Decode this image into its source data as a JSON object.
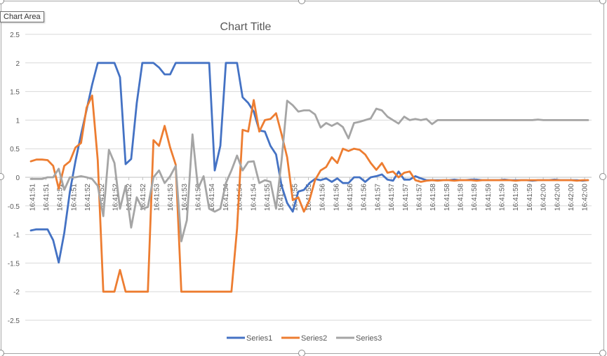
{
  "tooltip": "Chart Area",
  "chart_data": {
    "type": "line",
    "title": "Chart Title",
    "xlabel": "",
    "ylabel": "",
    "ylim": [
      -2.5,
      2.5
    ],
    "yticks": [
      2.5,
      2,
      1.5,
      1,
      0.5,
      0,
      -0.5,
      -1,
      -1.5,
      -2,
      -2.5
    ],
    "grid": true,
    "legend_position": "bottom",
    "x_tick_labels": [
      "16:41:51",
      "16:41:51",
      "16:41:51",
      "16:41:51",
      "16:41:52",
      "16:41:52",
      "16:41:52",
      "16:41:52",
      "16:41:52",
      "16:41:53",
      "16:41:53",
      "16:41:53",
      "16:41:53",
      "16:41:54",
      "16:41:54",
      "16:41:54",
      "16:41:54",
      "16:41:55",
      "16:41:55",
      "16:41:55",
      "16:41:55",
      "16:41:56",
      "16:41:56",
      "16:41:56",
      "16:41:56",
      "16:41:57",
      "16:41:57",
      "16:41:57",
      "16:41:57",
      "16:41:58",
      "16:41:58",
      "16:41:58",
      "16:41:58",
      "16:41:59",
      "16:41:59",
      "16:41:59",
      "16:41:59",
      "16:42:00",
      "16:42:00",
      "16:42:00",
      "16:42:00"
    ],
    "series": [
      {
        "name": "Series1",
        "color": "#4472C4",
        "values": [
          -0.93,
          -0.91,
          -0.91,
          -0.91,
          -1.1,
          -1.49,
          -0.97,
          -0.25,
          0.28,
          0.75,
          1.18,
          1.62,
          2,
          2,
          2,
          2,
          1.75,
          0.23,
          0.32,
          1.3,
          2,
          2,
          2,
          1.92,
          1.8,
          1.8,
          2,
          2,
          2,
          2,
          2,
          2,
          2,
          0.12,
          0.55,
          2,
          2,
          2,
          1.4,
          1.3,
          1.15,
          0.82,
          0.8,
          0.55,
          0.4,
          -0.15,
          -0.45,
          -0.6,
          -0.25,
          -0.22,
          -0.1,
          -0.03,
          -0.05,
          -0.02,
          -0.08,
          -0.02,
          -0.1,
          -0.1,
          0,
          0,
          -0.08,
          0,
          0.02,
          0.05,
          -0.04,
          -0.06,
          0.1,
          -0.04,
          -0.04,
          0.02,
          -0.02,
          -0.05,
          -0.05,
          -0.05,
          -0.05,
          -0.05,
          -0.04,
          -0.05,
          -0.05,
          -0.04,
          -0.04,
          -0.05,
          -0.05,
          -0.05,
          -0.05,
          -0.04,
          -0.05,
          -0.05,
          -0.05,
          -0.05,
          -0.06,
          -0.05,
          -0.05,
          -0.05,
          -0.04,
          -0.05,
          -0.05,
          -0.05,
          -0.05,
          -0.06,
          -0.05
        ]
      },
      {
        "name": "Series2",
        "color": "#ED7D31",
        "values": [
          0.28,
          0.31,
          0.31,
          0.3,
          0.2,
          -0.2,
          0.2,
          0.28,
          0.52,
          0.6,
          1.22,
          1.43,
          0.3,
          -2,
          -2,
          -2,
          -1.62,
          -2,
          -2,
          -2,
          -2,
          -2,
          0.65,
          0.55,
          0.9,
          0.52,
          0.22,
          -2,
          -2,
          -2,
          -2,
          -2,
          -2,
          -2,
          -2,
          -2,
          -2,
          -0.9,
          0.83,
          0.8,
          1.35,
          0.8,
          1,
          1.02,
          1.12,
          0.75,
          0.35,
          -0.4,
          -0.35,
          -0.6,
          -0.4,
          -0.05,
          0.12,
          0.18,
          0.35,
          0.25,
          0.5,
          0.46,
          0.5,
          0.48,
          0.4,
          0.25,
          0.13,
          0.25,
          0.08,
          0.1,
          0,
          0.08,
          0.1,
          -0.05,
          -0.08,
          -0.06,
          -0.05,
          -0.06,
          -0.05,
          -0.05,
          -0.06,
          -0.05,
          -0.05,
          -0.05,
          -0.06,
          -0.05,
          -0.05,
          -0.05,
          -0.05,
          -0.05,
          -0.05,
          -0.06,
          -0.05,
          -0.05,
          -0.05,
          -0.05,
          -0.05,
          -0.05,
          -0.05,
          -0.05,
          -0.05,
          -0.05,
          -0.06,
          -0.05,
          -0.05
        ]
      },
      {
        "name": "Series3",
        "color": "#A5A5A5",
        "values": [
          -0.03,
          -0.03,
          -0.03,
          0,
          0,
          0.15,
          -0.22,
          0,
          0,
          0.02,
          0,
          -0.03,
          -0.15,
          -0.68,
          0.48,
          0.25,
          -0.55,
          -0.15,
          -0.88,
          -0.35,
          -0.55,
          -0.52,
          0,
          0.12,
          -0.1,
          0.02,
          0.2,
          -1.12,
          -0.75,
          0.75,
          -0.2,
          0.02,
          -0.55,
          -0.6,
          -0.55,
          -0.1,
          0.12,
          0.38,
          0.12,
          0.27,
          0.28,
          -0.1,
          -0.05,
          -0.08,
          -0.55,
          0.3,
          1.34,
          1.26,
          1.15,
          1.17,
          1.17,
          1.1,
          0.87,
          0.95,
          0.9,
          0.95,
          0.88,
          0.68,
          0.95,
          0.97,
          1,
          1.03,
          1.2,
          1.17,
          1.06,
          1,
          0.94,
          1.06,
          1,
          1.02,
          1,
          1.02,
          0.93,
          1,
          1,
          1,
          1,
          1,
          1,
          1,
          1,
          1,
          1,
          1,
          1,
          1,
          1,
          1,
          1,
          1,
          1,
          1.01,
          1,
          1,
          1,
          1,
          1,
          1,
          1,
          1,
          1
        ]
      }
    ]
  }
}
